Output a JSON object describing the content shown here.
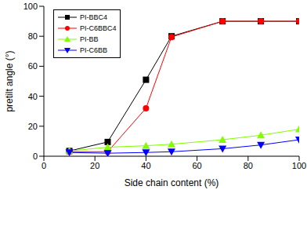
{
  "chart_data": {
    "type": "line",
    "xlabel": "Side chain content (%)",
    "ylabel": "pretilt angle (°)",
    "x": [
      10,
      25,
      40,
      50,
      70,
      85,
      100
    ],
    "series": [
      {
        "name": "PI-BBC4",
        "color": "#000000",
        "marker": "square",
        "values": [
          3.5,
          9.5,
          51,
          80,
          90,
          90,
          90
        ]
      },
      {
        "name": "PI-C6BBC4",
        "color": "#ff0000",
        "marker": "circle",
        "values": [
          3,
          3,
          32,
          79.5,
          90,
          90,
          90
        ]
      },
      {
        "name": "PI-BB",
        "color": "#80ff00",
        "marker": "triangle-up",
        "values": [
          3.5,
          6,
          7,
          8,
          11,
          14,
          18
        ]
      },
      {
        "name": "PI-C6BB",
        "color": "#0000ff",
        "marker": "triangle-down",
        "values": [
          2.5,
          2,
          2.5,
          3,
          5,
          7.5,
          11
        ]
      }
    ],
    "xlim": [
      0,
      100
    ],
    "xticks": [
      0,
      20,
      40,
      60,
      80,
      100
    ],
    "ylim": [
      0,
      100
    ],
    "yticks": [
      0,
      20,
      40,
      60,
      80,
      100
    ],
    "legend": "upper left"
  }
}
